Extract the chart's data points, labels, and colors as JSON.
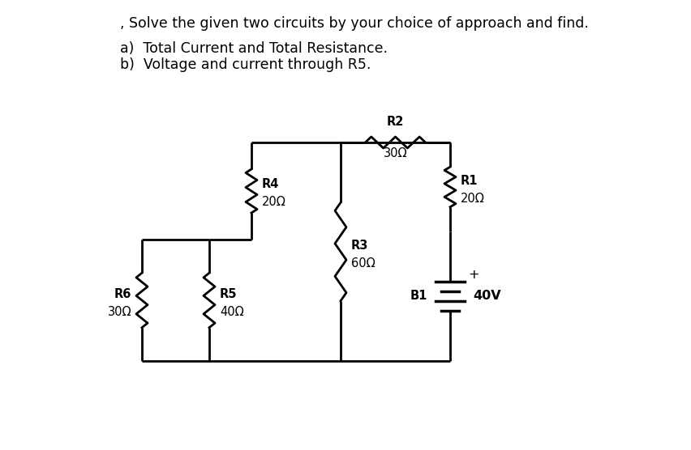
{
  "title_line1": ", Solve the given two circuits by your choice of approach and find.",
  "title_line2a": "a)  Total Current and Total Resistance.",
  "title_line2b": "b)  Voltage and current through R5.",
  "bg_color": "#ffffff",
  "line_color": "#000000",
  "text_color": "#000000",
  "font_size_title": 12.5,
  "font_size_label": 10.5,
  "R1_label": "R1",
  "R1_val": "20Ω",
  "R2_label": "R2",
  "R2_val": "30Ω",
  "R3_label": "R3",
  "R3_val": "60Ω",
  "R4_label": "R4",
  "R4_val": "20Ω",
  "R5_label": "R5",
  "R5_val": "40Ω",
  "R6_label": "R6",
  "R6_val": "30Ω",
  "B1_label": "B1",
  "B1_val": "40V"
}
